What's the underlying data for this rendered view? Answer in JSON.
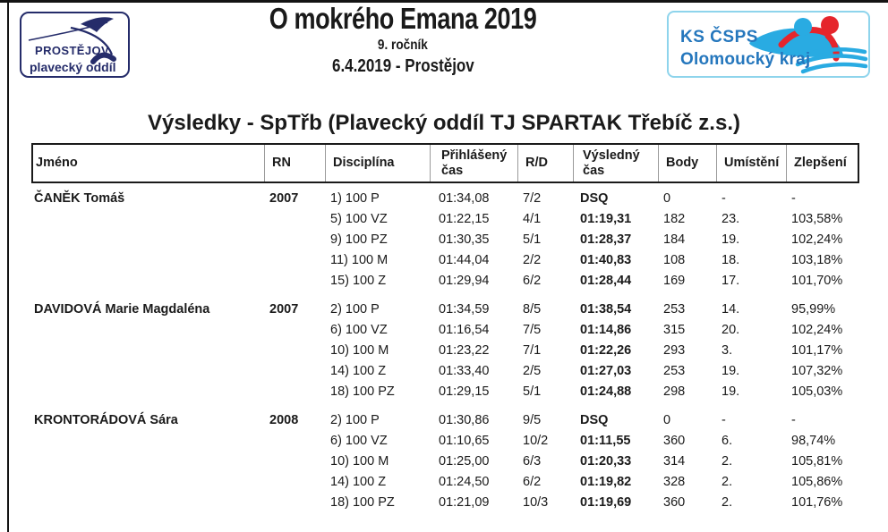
{
  "event": {
    "title": "O mokrého Emana 2019",
    "edition": "9. ročník",
    "date_location": "6.4.2019 - Prostějov"
  },
  "logo_left": {
    "line1": "PROSTĚJOV",
    "line2": "plavecký oddíl",
    "color": "#252c6a"
  },
  "logo_right": {
    "line1": "KS ČSPS",
    "line2": "Olomoucký kraj",
    "text_color": "#2577bd",
    "wave_color": "#29abe2",
    "swimmer_color": "#e5252c"
  },
  "results": {
    "heading": "Výsledky - SpTřb (Plavecký oddíl TJ SPARTAK Třebíč z.s.)",
    "columns": [
      "Jméno",
      "RN",
      "Disciplína",
      "Přihlášený čas",
      "R/D",
      "Výsledný čas",
      "Body",
      "Umístění",
      "Zlepšení"
    ],
    "swimmers": [
      {
        "name": "ČANĚK Tomáš",
        "rn": "2007",
        "rows": [
          {
            "discipline": "1) 100 P",
            "entry_time": "01:34,08",
            "rd": "7/2",
            "result_time": "DSQ",
            "points": "0",
            "place": "-",
            "improvement": "-"
          },
          {
            "discipline": "5) 100 VZ",
            "entry_time": "01:22,15",
            "rd": "4/1",
            "result_time": "01:19,31",
            "points": "182",
            "place": "23.",
            "improvement": "103,58%"
          },
          {
            "discipline": "9) 100 PZ",
            "entry_time": "01:30,35",
            "rd": "5/1",
            "result_time": "01:28,37",
            "points": "184",
            "place": "19.",
            "improvement": "102,24%"
          },
          {
            "discipline": "11) 100 M",
            "entry_time": "01:44,04",
            "rd": "2/2",
            "result_time": "01:40,83",
            "points": "108",
            "place": "18.",
            "improvement": "103,18%"
          },
          {
            "discipline": "15) 100 Z",
            "entry_time": "01:29,94",
            "rd": "6/2",
            "result_time": "01:28,44",
            "points": "169",
            "place": "17.",
            "improvement": "101,70%"
          }
        ]
      },
      {
        "name": "DAVIDOVÁ Marie Magdaléna",
        "rn": "2007",
        "rows": [
          {
            "discipline": "2) 100 P",
            "entry_time": "01:34,59",
            "rd": "8/5",
            "result_time": "01:38,54",
            "points": "253",
            "place": "14.",
            "improvement": "95,99%"
          },
          {
            "discipline": "6) 100 VZ",
            "entry_time": "01:16,54",
            "rd": "7/5",
            "result_time": "01:14,86",
            "points": "315",
            "place": "20.",
            "improvement": "102,24%"
          },
          {
            "discipline": "10) 100 M",
            "entry_time": "01:23,22",
            "rd": "7/1",
            "result_time": "01:22,26",
            "points": "293",
            "place": "3.",
            "improvement": "101,17%"
          },
          {
            "discipline": "14) 100 Z",
            "entry_time": "01:33,40",
            "rd": "2/5",
            "result_time": "01:27,03",
            "points": "253",
            "place": "19.",
            "improvement": "107,32%"
          },
          {
            "discipline": "18) 100 PZ",
            "entry_time": "01:29,15",
            "rd": "5/1",
            "result_time": "01:24,88",
            "points": "298",
            "place": "19.",
            "improvement": "105,03%"
          }
        ]
      },
      {
        "name": "KRONTORÁDOVÁ Sára",
        "rn": "2008",
        "rows": [
          {
            "discipline": "2) 100 P",
            "entry_time": "01:30,86",
            "rd": "9/5",
            "result_time": "DSQ",
            "points": "0",
            "place": "-",
            "improvement": "-"
          },
          {
            "discipline": "6) 100 VZ",
            "entry_time": "01:10,65",
            "rd": "10/2",
            "result_time": "01:11,55",
            "points": "360",
            "place": "6.",
            "improvement": "98,74%"
          },
          {
            "discipline": "10) 100 M",
            "entry_time": "01:25,00",
            "rd": "6/3",
            "result_time": "01:20,33",
            "points": "314",
            "place": "2.",
            "improvement": "105,81%"
          },
          {
            "discipline": "14) 100 Z",
            "entry_time": "01:24,50",
            "rd": "6/2",
            "result_time": "01:19,82",
            "points": "328",
            "place": "2.",
            "improvement": "105,86%"
          },
          {
            "discipline": "18) 100 PZ",
            "entry_time": "01:21,09",
            "rd": "10/3",
            "result_time": "01:19,69",
            "points": "360",
            "place": "2.",
            "improvement": "101,76%"
          }
        ]
      }
    ]
  }
}
